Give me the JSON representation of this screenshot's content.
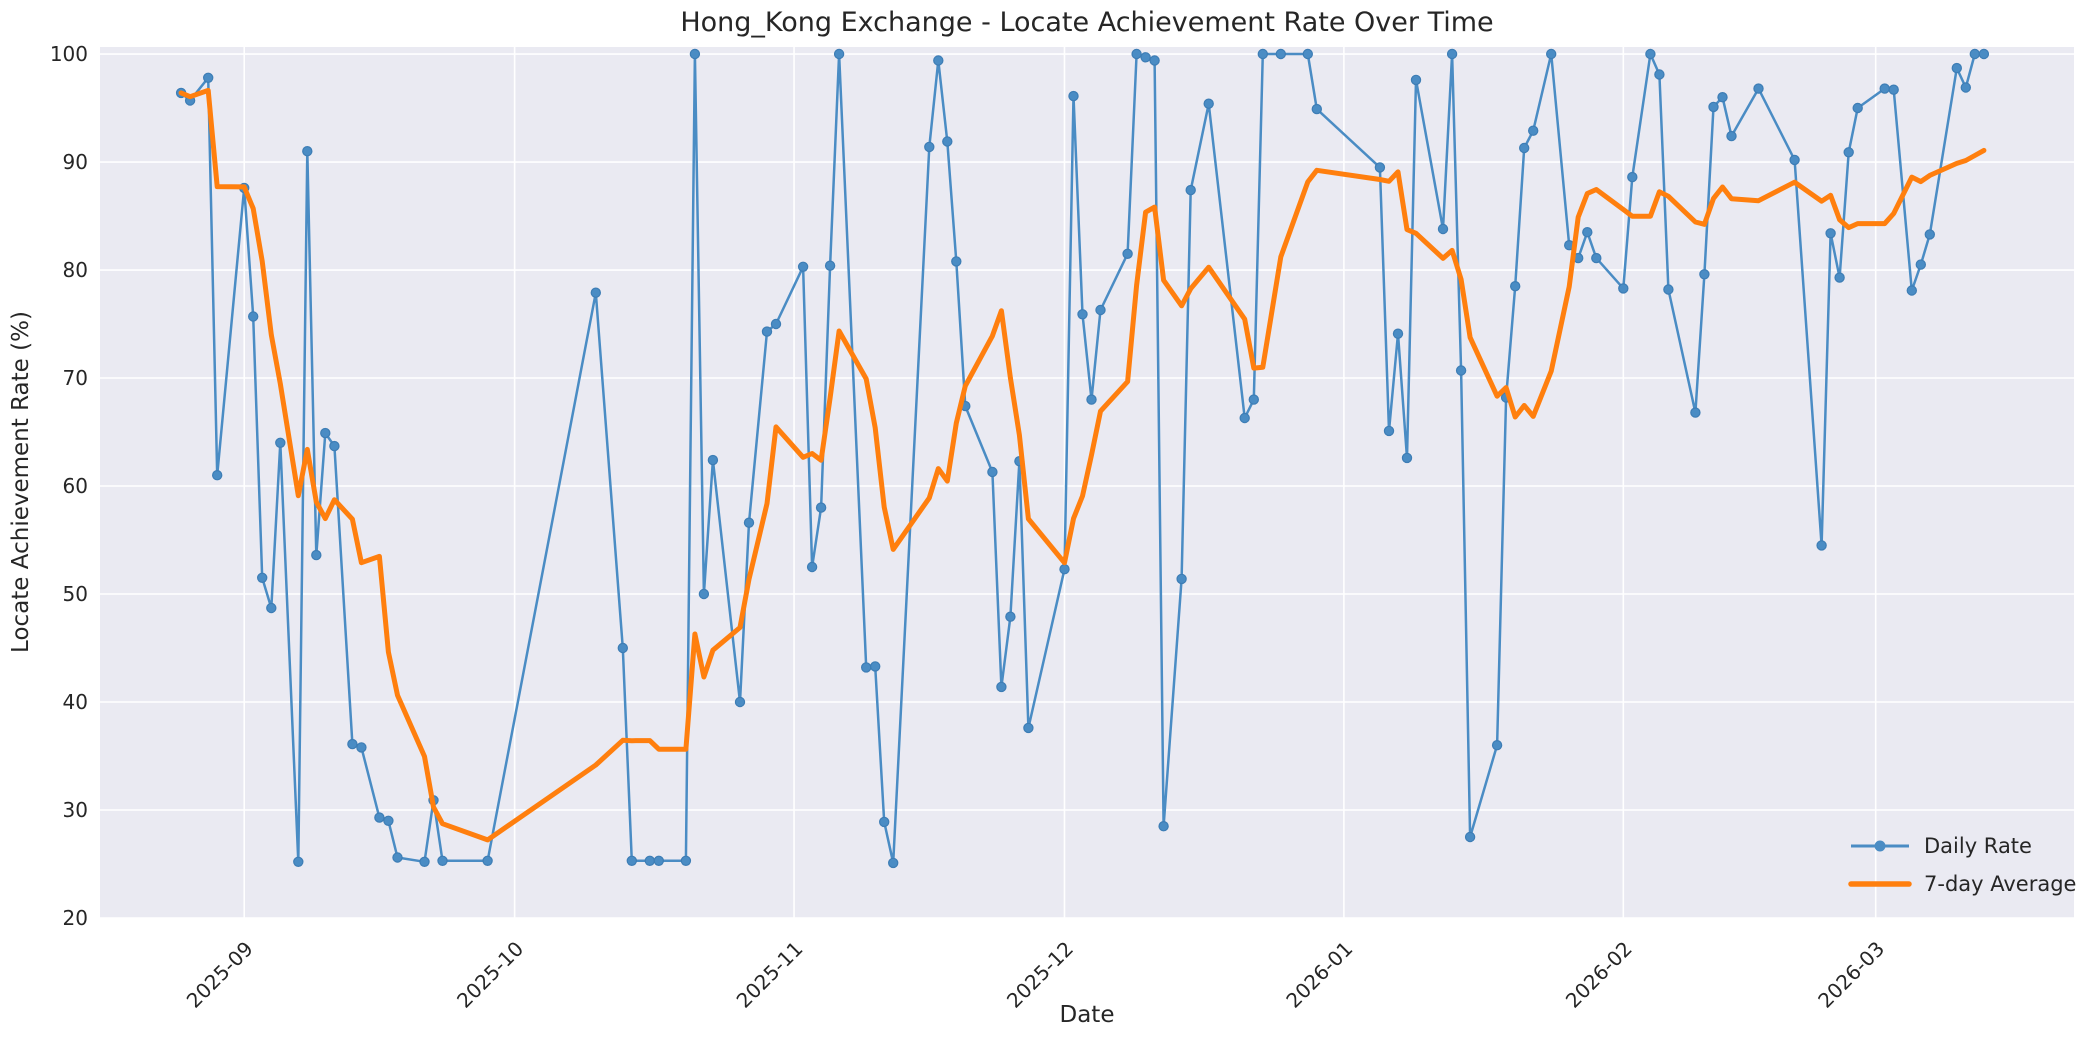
{
  "chart": {
    "title": "Hong_Kong Exchange - Locate Achievement Rate Over Time",
    "xlabel": "Date",
    "ylabel": "Locate Achievement Rate (%)",
    "legend": {
      "daily_label": "Daily Rate",
      "avg_label": "7-day Average"
    }
  },
  "chart_data": {
    "type": "line",
    "title": "Hong_Kong Exchange - Locate Achievement Rate Over Time",
    "xlabel": "Date",
    "ylabel": "Locate Achievement Rate (%)",
    "grid": true,
    "plot_bg": "#EAEAF2",
    "grid_color": "#FFFFFF",
    "text_color": "#262626",
    "legend_position": "lower right",
    "ylim": [
      20,
      100.65
    ],
    "xlim": [
      "2025-08-16",
      "2026-03-23"
    ],
    "y_ticks": [
      20,
      30,
      40,
      50,
      60,
      70,
      80,
      90,
      100
    ],
    "x_ticks": [
      "2025-09-01",
      "2025-10-01",
      "2025-11-01",
      "2025-12-01",
      "2026-01-01",
      "2026-02-01",
      "2026-03-01"
    ],
    "x_tick_labels": [
      "2025-09",
      "2025-10",
      "2025-11",
      "2025-12",
      "2026-01",
      "2026-02",
      "2026-03"
    ],
    "series": [
      {
        "name": "Daily Rate",
        "style": "line_with_markers",
        "color": "#4A8CC4",
        "line_width": 2.5,
        "marker_radius": 4.6,
        "points": [
          [
            "2025-08-25",
            96.4
          ],
          [
            "2025-08-26",
            95.7
          ],
          [
            "2025-08-28",
            97.8
          ],
          [
            "2025-08-29",
            61.0
          ],
          [
            "2025-09-01",
            87.6
          ],
          [
            "2025-09-02",
            75.7
          ],
          [
            "2025-09-03",
            51.5
          ],
          [
            "2025-09-04",
            48.7
          ],
          [
            "2025-09-05",
            64.0
          ],
          [
            "2025-09-07",
            25.2
          ],
          [
            "2025-09-08",
            91.0
          ],
          [
            "2025-09-09",
            53.6
          ],
          [
            "2025-09-10",
            64.9
          ],
          [
            "2025-09-11",
            63.7
          ],
          [
            "2025-09-13",
            36.1
          ],
          [
            "2025-09-14",
            35.8
          ],
          [
            "2025-09-16",
            29.3
          ],
          [
            "2025-09-17",
            29.0
          ],
          [
            "2025-09-18",
            25.6
          ],
          [
            "2025-09-21",
            25.2
          ],
          [
            "2025-09-22",
            30.9
          ],
          [
            "2025-09-23",
            25.3
          ],
          [
            "2025-09-28",
            25.3
          ],
          [
            "2025-10-10",
            77.9
          ],
          [
            "2025-10-13",
            45.0
          ],
          [
            "2025-10-14",
            25.3
          ],
          [
            "2025-10-16",
            25.3
          ],
          [
            "2025-10-17",
            25.3
          ],
          [
            "2025-10-20",
            25.3
          ],
          [
            "2025-10-21",
            100.0
          ],
          [
            "2025-10-22",
            50.0
          ],
          [
            "2025-10-23",
            62.4
          ],
          [
            "2025-10-26",
            40.0
          ],
          [
            "2025-10-27",
            56.6
          ],
          [
            "2025-10-29",
            74.3
          ],
          [
            "2025-10-30",
            75.0
          ],
          [
            "2025-11-02",
            80.3
          ],
          [
            "2025-11-03",
            52.5
          ],
          [
            "2025-11-04",
            58.0
          ],
          [
            "2025-11-05",
            80.4
          ],
          [
            "2025-11-06",
            100.0
          ],
          [
            "2025-11-09",
            43.2
          ],
          [
            "2025-11-10",
            43.3
          ],
          [
            "2025-11-11",
            28.9
          ],
          [
            "2025-11-12",
            25.1
          ],
          [
            "2025-11-16",
            91.4
          ],
          [
            "2025-11-17",
            99.4
          ],
          [
            "2025-11-18",
            91.9
          ],
          [
            "2025-11-19",
            80.8
          ],
          [
            "2025-11-20",
            67.4
          ],
          [
            "2025-11-23",
            61.3
          ],
          [
            "2025-11-24",
            41.4
          ],
          [
            "2025-11-25",
            47.9
          ],
          [
            "2025-11-26",
            62.3
          ],
          [
            "2025-11-27",
            37.6
          ],
          [
            "2025-12-01",
            52.3
          ],
          [
            "2025-12-02",
            96.1
          ],
          [
            "2025-12-03",
            75.9
          ],
          [
            "2025-12-04",
            68.0
          ],
          [
            "2025-12-05",
            76.3
          ],
          [
            "2025-12-08",
            81.5
          ],
          [
            "2025-12-09",
            100.0
          ],
          [
            "2025-12-10",
            99.7
          ],
          [
            "2025-12-11",
            99.4
          ],
          [
            "2025-12-12",
            28.5
          ],
          [
            "2025-12-14",
            51.4
          ],
          [
            "2025-12-15",
            87.4
          ],
          [
            "2025-12-17",
            95.4
          ],
          [
            "2025-12-21",
            66.3
          ],
          [
            "2025-12-22",
            68.0
          ],
          [
            "2025-12-23",
            100.0
          ],
          [
            "2025-12-25",
            100.0
          ],
          [
            "2025-12-28",
            100.0
          ],
          [
            "2025-12-29",
            94.9
          ],
          [
            "2026-01-05",
            89.5
          ],
          [
            "2026-01-06",
            65.1
          ],
          [
            "2026-01-07",
            74.1
          ],
          [
            "2026-01-08",
            62.6
          ],
          [
            "2026-01-09",
            97.6
          ],
          [
            "2026-01-12",
            83.8
          ],
          [
            "2026-01-13",
            100.0
          ],
          [
            "2026-01-14",
            70.7
          ],
          [
            "2026-01-15",
            27.5
          ],
          [
            "2026-01-18",
            36.0
          ],
          [
            "2026-01-19",
            68.2
          ],
          [
            "2026-01-20",
            78.5
          ],
          [
            "2026-01-21",
            91.3
          ],
          [
            "2026-01-22",
            92.9
          ],
          [
            "2026-01-24",
            100.0
          ],
          [
            "2026-01-26",
            82.3
          ],
          [
            "2026-01-27",
            81.1
          ],
          [
            "2026-01-28",
            83.5
          ],
          [
            "2026-01-29",
            81.1
          ],
          [
            "2026-02-01",
            78.3
          ],
          [
            "2026-02-02",
            88.6
          ],
          [
            "2026-02-04",
            100.0
          ],
          [
            "2026-02-05",
            98.1
          ],
          [
            "2026-02-06",
            78.2
          ],
          [
            "2026-02-09",
            66.8
          ],
          [
            "2026-02-10",
            79.6
          ],
          [
            "2026-02-11",
            95.1
          ],
          [
            "2026-02-12",
            96.0
          ],
          [
            "2026-02-13",
            92.4
          ],
          [
            "2026-02-16",
            96.8
          ],
          [
            "2026-02-20",
            90.2
          ],
          [
            "2026-02-23",
            54.5
          ],
          [
            "2026-02-24",
            83.4
          ],
          [
            "2026-02-25",
            79.3
          ],
          [
            "2026-02-26",
            90.9
          ],
          [
            "2026-02-27",
            95.0
          ],
          [
            "2026-03-02",
            96.8
          ],
          [
            "2026-03-03",
            96.7
          ],
          [
            "2026-03-05",
            78.1
          ],
          [
            "2026-03-06",
            80.5
          ],
          [
            "2026-03-07",
            83.3
          ],
          [
            "2026-03-10",
            98.7
          ],
          [
            "2026-03-11",
            96.9
          ],
          [
            "2026-03-12",
            100.0
          ],
          [
            "2026-03-13",
            100.0
          ]
        ]
      },
      {
        "name": "7-day Average",
        "style": "line",
        "color": "#FF7F0E",
        "line_width": 5,
        "derived": {
          "from": "Daily Rate",
          "method": "rolling_mean",
          "window": 7,
          "min_periods": 1
        }
      }
    ]
  },
  "layout_note": "seaborn-darkgrid style figure"
}
